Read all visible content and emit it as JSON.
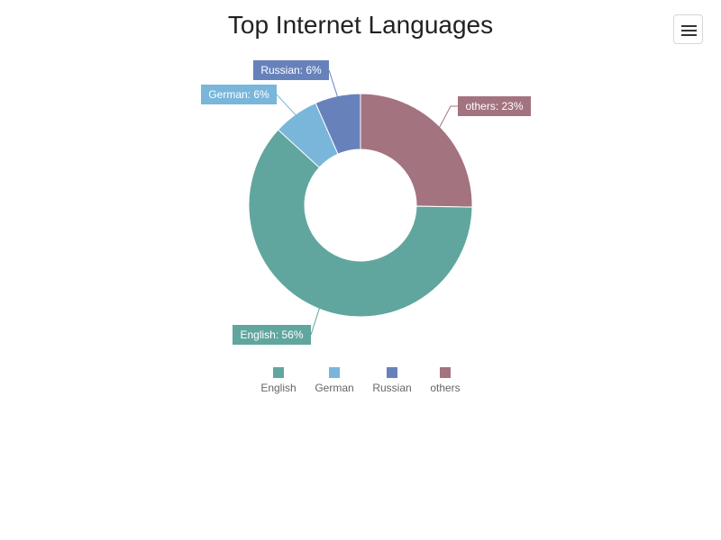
{
  "chart_data": {
    "type": "pie",
    "title": "Top Internet Languages",
    "donut": true,
    "categories": [
      "others",
      "English",
      "German",
      "Russian"
    ],
    "values": [
      23,
      56,
      6,
      6
    ],
    "labels": [
      "others: 23%",
      "English: 56%",
      "German: 6%",
      "Russian: 6%"
    ],
    "colors": [
      "#a3737f",
      "#61a69e",
      "#79b6da",
      "#6782bb"
    ],
    "legend": {
      "position": "bottom",
      "entries": [
        "English",
        "German",
        "Russian",
        "others"
      ],
      "colors": [
        "#61a69e",
        "#79b6da",
        "#6782bb",
        "#a3737f"
      ]
    }
  },
  "toolbar": {
    "menu_icon": "hamburger-menu-icon"
  }
}
